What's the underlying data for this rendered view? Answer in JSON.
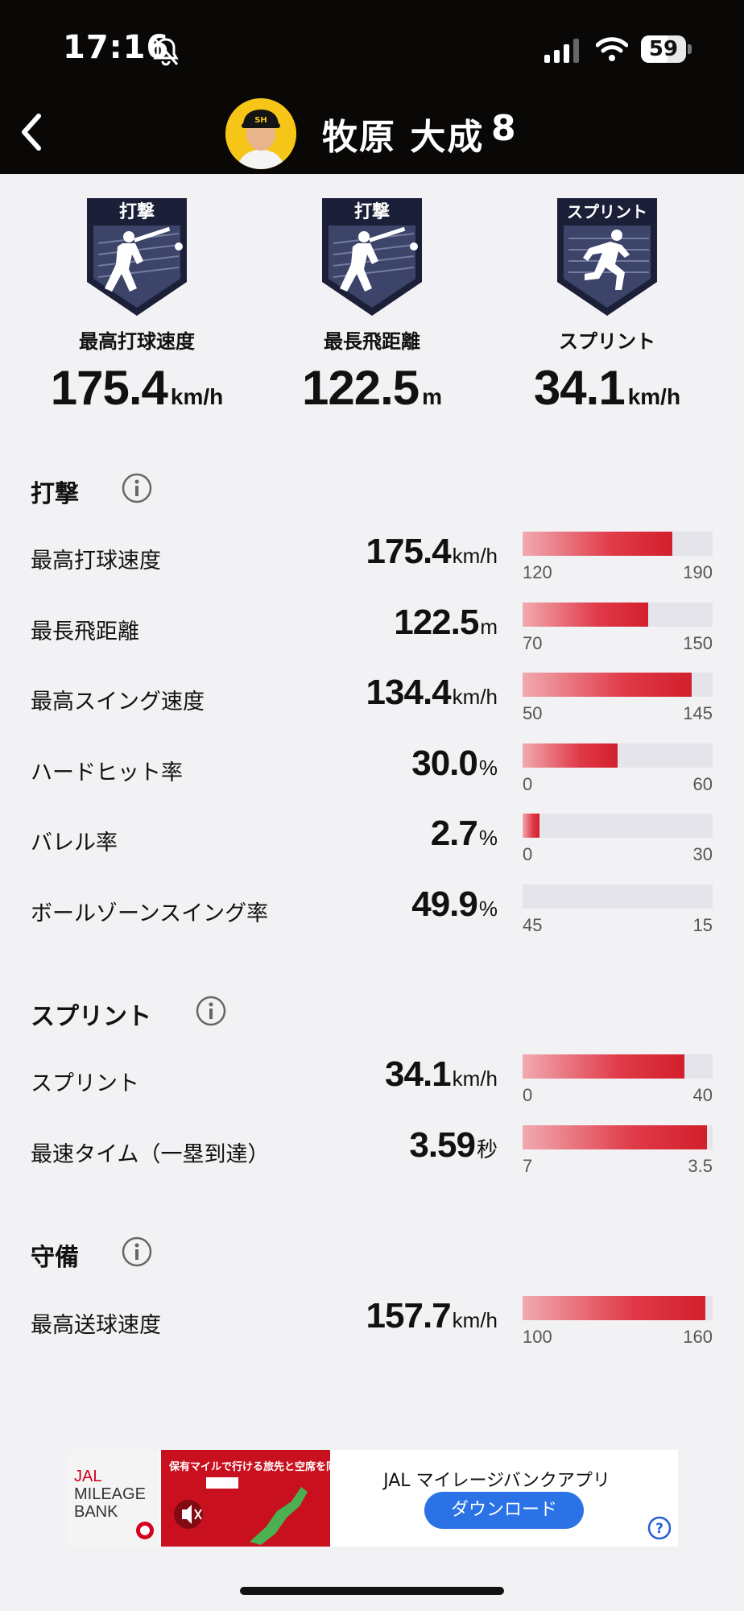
{
  "status_bar": {
    "time": "17:16",
    "battery": "59",
    "battery_fraction": 0.59
  },
  "header": {
    "name": "牧原 大成",
    "number": "8"
  },
  "badges": [
    {
      "tag": "打撃",
      "label": "最高打球速度",
      "value": "175.4",
      "unit": "km/h"
    },
    {
      "tag": "打撃",
      "label": "最長飛距離",
      "value": "122.5",
      "unit": "m"
    },
    {
      "tag": "スプリント",
      "label": "スプリント",
      "value": "34.1",
      "unit": "km/h"
    }
  ],
  "sections": {
    "batting": {
      "title": "打撃",
      "rows": [
        {
          "label": "最高打球速度",
          "value": "175.4",
          "unit": "km/h",
          "min": "120",
          "max": "190",
          "fill": 0.79
        },
        {
          "label": "最長飛距離",
          "value": "122.5",
          "unit": "m",
          "min": "70",
          "max": "150",
          "fill": 0.66
        },
        {
          "label": "最高スイング速度",
          "value": "134.4",
          "unit": "km/h",
          "min": "50",
          "max": "145",
          "fill": 0.89
        },
        {
          "label": "ハードヒット率",
          "value": "30.0",
          "unit": "%",
          "min": "0",
          "max": "60",
          "fill": 0.5
        },
        {
          "label": "バレル率",
          "value": "2.7",
          "unit": "%",
          "min": "0",
          "max": "30",
          "fill": 0.09
        },
        {
          "label": "ボールゾーンスイング率",
          "value": "49.9",
          "unit": "%",
          "min": "45",
          "max": "15",
          "fill": 0.0
        }
      ]
    },
    "sprint": {
      "title": "スプリント",
      "rows": [
        {
          "label": "スプリント",
          "value": "34.1",
          "unit": "km/h",
          "min": "0",
          "max": "40",
          "fill": 0.85
        },
        {
          "label": "最速タイム（一塁到達）",
          "value": "3.59",
          "unit": "秒",
          "min": "7",
          "max": "3.5",
          "fill": 0.97
        }
      ]
    },
    "defense": {
      "title": "守備",
      "rows": [
        {
          "label": "最高送球速度",
          "value": "157.7",
          "unit": "km/h",
          "min": "100",
          "max": "160",
          "fill": 0.96
        }
      ]
    }
  },
  "ad": {
    "logo_lines": [
      "JAL",
      "MILEAGE",
      "BANK"
    ],
    "banner_text": "保有マイルで行ける旅先と空席を同時に表示",
    "title": "JAL マイレージバンクアプリ",
    "button": "ダウンロード"
  },
  "colors": {
    "bar_start": "#f1aab0",
    "bar_end": "#d21f2c",
    "track": "#e4e4ea",
    "header_bg": "#0a0807",
    "button": "#2a72e6"
  }
}
